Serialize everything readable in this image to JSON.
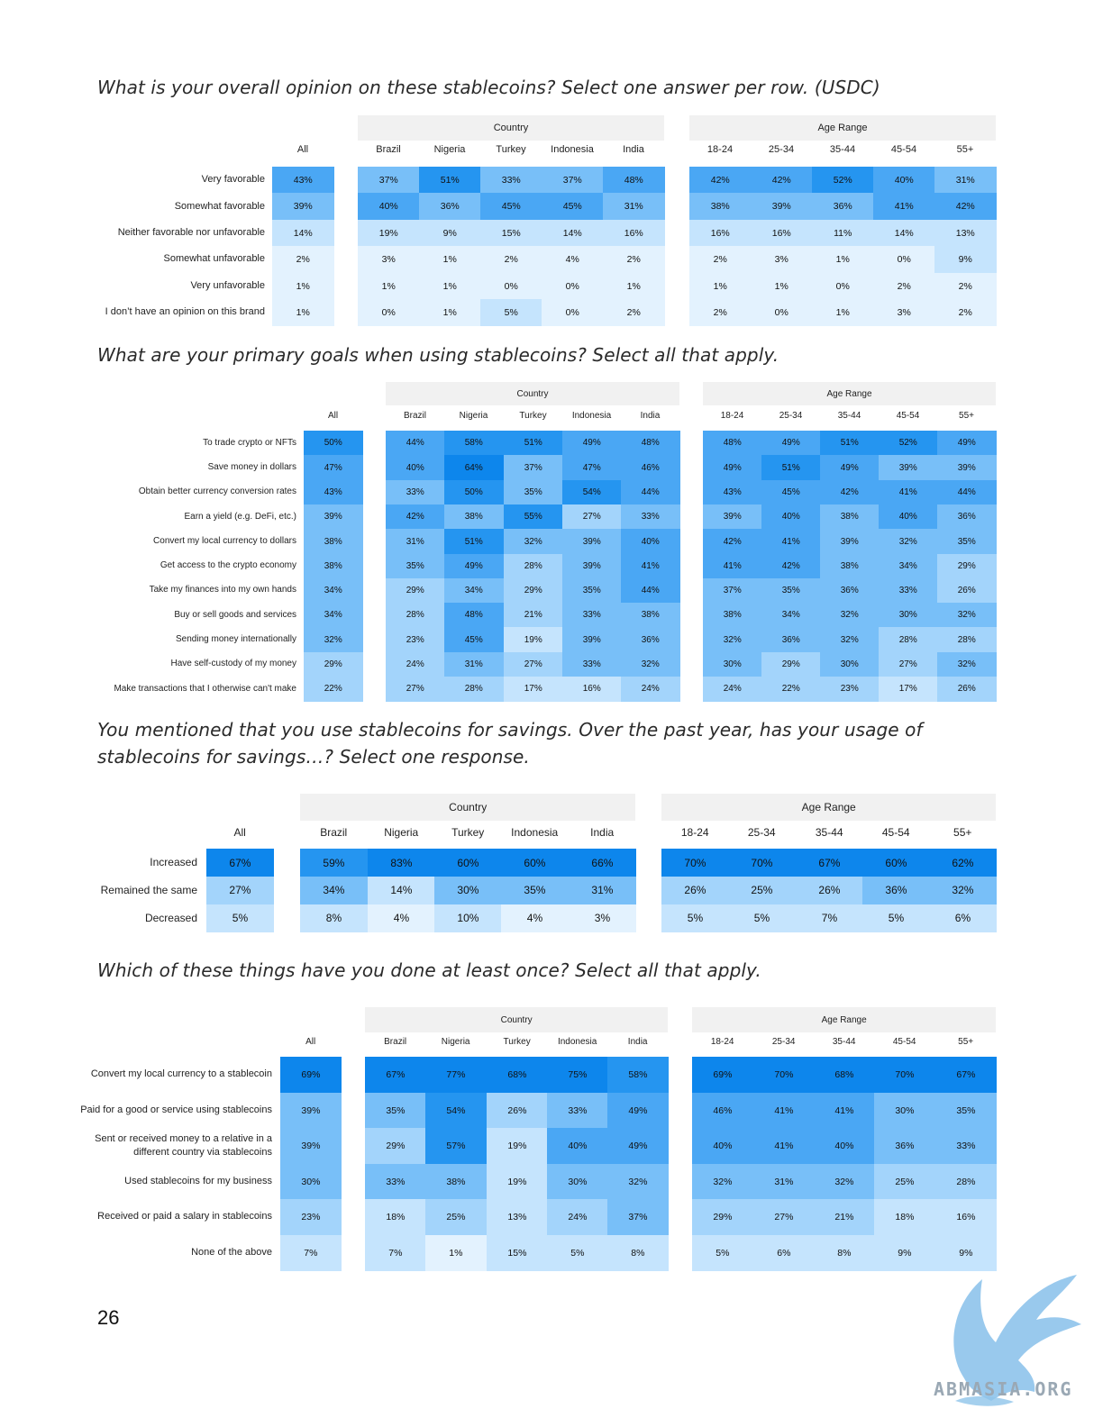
{
  "page_number": "26",
  "watermark_text": "ABMASIA.ORG",
  "palette": {
    "c1": "#e3f2fe",
    "c2": "#c5e4fd",
    "c3": "#a3d4fb",
    "c4": "#78bff8",
    "c5": "#4aa7f4",
    "c6": "#2595f0",
    "c7": "#0d86ec"
  },
  "tables": [
    {
      "question": "What is your overall opinion on these stablecoins? Select one answer per row. (USDC)",
      "group_country": "Country",
      "group_age": "Age Range",
      "col_all": "All",
      "cols_country": [
        "Brazil",
        "Nigeria",
        "Turkey",
        "Indonesia",
        "India"
      ],
      "cols_age": [
        "18-24",
        "25-34",
        "35-44",
        "45-54",
        "55+"
      ],
      "rows": [
        {
          "label": "Very favorable",
          "values": [
            "43%",
            "37%",
            "51%",
            "33%",
            "37%",
            "48%",
            "42%",
            "42%",
            "52%",
            "40%",
            "31%"
          ]
        },
        {
          "label": "Somewhat favorable",
          "values": [
            "39%",
            "40%",
            "36%",
            "45%",
            "45%",
            "31%",
            "38%",
            "39%",
            "36%",
            "41%",
            "42%"
          ]
        },
        {
          "label": "Neither favorable nor unfavorable",
          "values": [
            "14%",
            "19%",
            "9%",
            "15%",
            "14%",
            "16%",
            "16%",
            "16%",
            "11%",
            "14%",
            "13%"
          ]
        },
        {
          "label": "Somewhat unfavorable",
          "values": [
            "2%",
            "3%",
            "1%",
            "2%",
            "4%",
            "2%",
            "2%",
            "3%",
            "1%",
            "0%",
            "9%"
          ]
        },
        {
          "label": "Very unfavorable",
          "values": [
            "1%",
            "1%",
            "1%",
            "0%",
            "0%",
            "1%",
            "1%",
            "1%",
            "0%",
            "2%",
            "2%"
          ]
        },
        {
          "label": "I don’t have an opinion on this brand",
          "values": [
            "1%",
            "0%",
            "1%",
            "5%",
            "0%",
            "2%",
            "2%",
            "0%",
            "1%",
            "3%",
            "2%"
          ]
        }
      ]
    },
    {
      "question": "What are your primary goals when using stablecoins? Select all that apply.",
      "group_country": "Country",
      "group_age": "Age Range",
      "col_all": "All",
      "cols_country": [
        "Brazil",
        "Nigeria",
        "Turkey",
        "Indonesia",
        "India"
      ],
      "cols_age": [
        "18-24",
        "25-34",
        "35-44",
        "45-54",
        "55+"
      ],
      "rows": [
        {
          "label": "To trade crypto or NFTs",
          "values": [
            "50%",
            "44%",
            "58%",
            "51%",
            "49%",
            "48%",
            "48%",
            "49%",
            "51%",
            "52%",
            "49%"
          ]
        },
        {
          "label": "Save money in dollars",
          "values": [
            "47%",
            "40%",
            "64%",
            "37%",
            "47%",
            "46%",
            "49%",
            "51%",
            "49%",
            "39%",
            "39%"
          ]
        },
        {
          "label": "Obtain better currency conversion rates",
          "values": [
            "43%",
            "33%",
            "50%",
            "35%",
            "54%",
            "44%",
            "43%",
            "45%",
            "42%",
            "41%",
            "44%"
          ]
        },
        {
          "label": "Earn a yield (e.g. DeFi, etc.)",
          "values": [
            "39%",
            "42%",
            "38%",
            "55%",
            "27%",
            "33%",
            "39%",
            "40%",
            "38%",
            "40%",
            "36%"
          ]
        },
        {
          "label": "Convert my local currency to dollars",
          "values": [
            "38%",
            "31%",
            "51%",
            "32%",
            "39%",
            "40%",
            "42%",
            "41%",
            "39%",
            "32%",
            "35%"
          ]
        },
        {
          "label": "Get access to the crypto economy",
          "values": [
            "38%",
            "35%",
            "49%",
            "28%",
            "39%",
            "41%",
            "41%",
            "42%",
            "38%",
            "34%",
            "29%"
          ]
        },
        {
          "label": "Take my finances into my own hands",
          "values": [
            "34%",
            "29%",
            "34%",
            "29%",
            "35%",
            "44%",
            "37%",
            "35%",
            "36%",
            "33%",
            "26%"
          ]
        },
        {
          "label": "Buy or sell goods and services",
          "values": [
            "34%",
            "28%",
            "48%",
            "21%",
            "33%",
            "38%",
            "38%",
            "34%",
            "32%",
            "30%",
            "32%"
          ]
        },
        {
          "label": "Sending money internationally",
          "values": [
            "32%",
            "23%",
            "45%",
            "19%",
            "39%",
            "36%",
            "32%",
            "36%",
            "32%",
            "28%",
            "28%"
          ]
        },
        {
          "label": "Have self-custody of my money",
          "values": [
            "29%",
            "24%",
            "31%",
            "27%",
            "33%",
            "32%",
            "30%",
            "29%",
            "30%",
            "27%",
            "32%"
          ]
        },
        {
          "label": "Make transactions that I otherwise can't make",
          "values": [
            "22%",
            "27%",
            "28%",
            "17%",
            "16%",
            "24%",
            "24%",
            "22%",
            "23%",
            "17%",
            "26%"
          ]
        }
      ]
    },
    {
      "question": "You mentioned that you use stablecoins for savings. Over the past year, has your usage of stablecoins for savings…? Select one response.",
      "group_country": "Country",
      "group_age": "Age Range",
      "col_all": "All",
      "cols_country": [
        "Brazil",
        "Nigeria",
        "Turkey",
        "Indonesia",
        "India"
      ],
      "cols_age": [
        "18-24",
        "25-34",
        "35-44",
        "45-54",
        "55+"
      ],
      "rows": [
        {
          "label": "Increased",
          "values": [
            "67%",
            "59%",
            "83%",
            "60%",
            "60%",
            "66%",
            "70%",
            "70%",
            "67%",
            "60%",
            "62%"
          ]
        },
        {
          "label": "Remained the same",
          "values": [
            "27%",
            "34%",
            "14%",
            "30%",
            "35%",
            "31%",
            "26%",
            "25%",
            "26%",
            "36%",
            "32%"
          ]
        },
        {
          "label": "Decreased",
          "values": [
            "5%",
            "8%",
            "4%",
            "10%",
            "4%",
            "3%",
            "5%",
            "5%",
            "7%",
            "5%",
            "6%"
          ]
        }
      ]
    },
    {
      "question": "Which of these things have you done at least once? Select all that apply.",
      "group_country": "Country",
      "group_age": "Age Range",
      "col_all": "All",
      "cols_country": [
        "Brazil",
        "Nigeria",
        "Turkey",
        "Indonesia",
        "India"
      ],
      "cols_age": [
        "18-24",
        "25-34",
        "35-44",
        "45-54",
        "55+"
      ],
      "rows": [
        {
          "label": "Convert my local currency to a stablecoin",
          "values": [
            "69%",
            "67%",
            "77%",
            "68%",
            "75%",
            "58%",
            "69%",
            "70%",
            "68%",
            "70%",
            "67%"
          ]
        },
        {
          "label": "Paid for a good or service using stablecoins",
          "values": [
            "39%",
            "35%",
            "54%",
            "26%",
            "33%",
            "49%",
            "46%",
            "41%",
            "41%",
            "30%",
            "35%"
          ]
        },
        {
          "label": "Sent or received money to a relative in a different country via stablecoins",
          "values": [
            "39%",
            "29%",
            "57%",
            "19%",
            "40%",
            "49%",
            "40%",
            "41%",
            "40%",
            "36%",
            "33%"
          ]
        },
        {
          "label": "Used stablecoins for my business",
          "values": [
            "30%",
            "33%",
            "38%",
            "19%",
            "30%",
            "32%",
            "32%",
            "31%",
            "32%",
            "25%",
            "28%"
          ]
        },
        {
          "label": "Received or paid a salary in stablecoins",
          "values": [
            "23%",
            "18%",
            "25%",
            "13%",
            "24%",
            "37%",
            "29%",
            "27%",
            "21%",
            "18%",
            "16%"
          ]
        },
        {
          "label": "None of the above",
          "values": [
            "7%",
            "7%",
            "1%",
            "15%",
            "5%",
            "8%",
            "5%",
            "6%",
            "8%",
            "9%",
            "9%"
          ]
        }
      ]
    }
  ]
}
